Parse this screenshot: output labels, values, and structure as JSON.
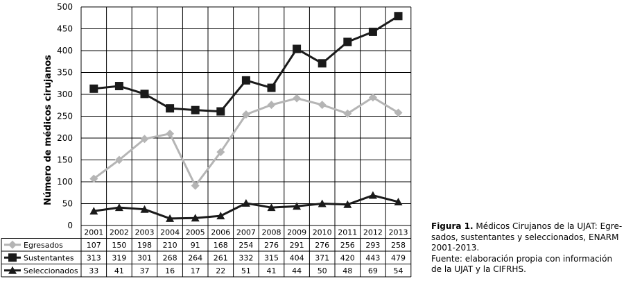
{
  "chart_data": {
    "type": "line",
    "ylabel": "Número de médicos cirujanos",
    "ylim": [
      0,
      500
    ],
    "yticks": [
      0,
      50,
      100,
      150,
      200,
      250,
      300,
      350,
      400,
      450,
      500
    ],
    "grid": true,
    "categories": [
      "2001",
      "2002",
      "2003",
      "2004",
      "2005",
      "2006",
      "2007",
      "2008",
      "2009",
      "2010",
      "2011",
      "2012",
      "2013"
    ],
    "series": [
      {
        "name": "Egresados",
        "color": "#b5b5b5",
        "marker": "diamond",
        "values": [
          107,
          150,
          198,
          210,
          91,
          168,
          254,
          276,
          291,
          276,
          256,
          293,
          258
        ]
      },
      {
        "name": "Sustentantes",
        "color": "#1a1a1a",
        "marker": "square",
        "values": [
          313,
          319,
          301,
          268,
          264,
          261,
          332,
          315,
          404,
          371,
          420,
          443,
          479
        ]
      },
      {
        "name": "Seleccionados",
        "color": "#1a1a1a",
        "marker": "triangle",
        "values": [
          33,
          41,
          37,
          16,
          17,
          22,
          51,
          41,
          44,
          50,
          48,
          69,
          54
        ]
      }
    ]
  },
  "caption": {
    "label": "Figura 1.",
    "line1": " Médicos Cirujanos de la UJAT: Egre-",
    "line2": "sados, sustentantes y seleccionados, ENARM",
    "line3": "2001-2013.",
    "line4": "Fuente: elaboración propia con información",
    "line5": "de la UJAT y la CIFRHS."
  }
}
